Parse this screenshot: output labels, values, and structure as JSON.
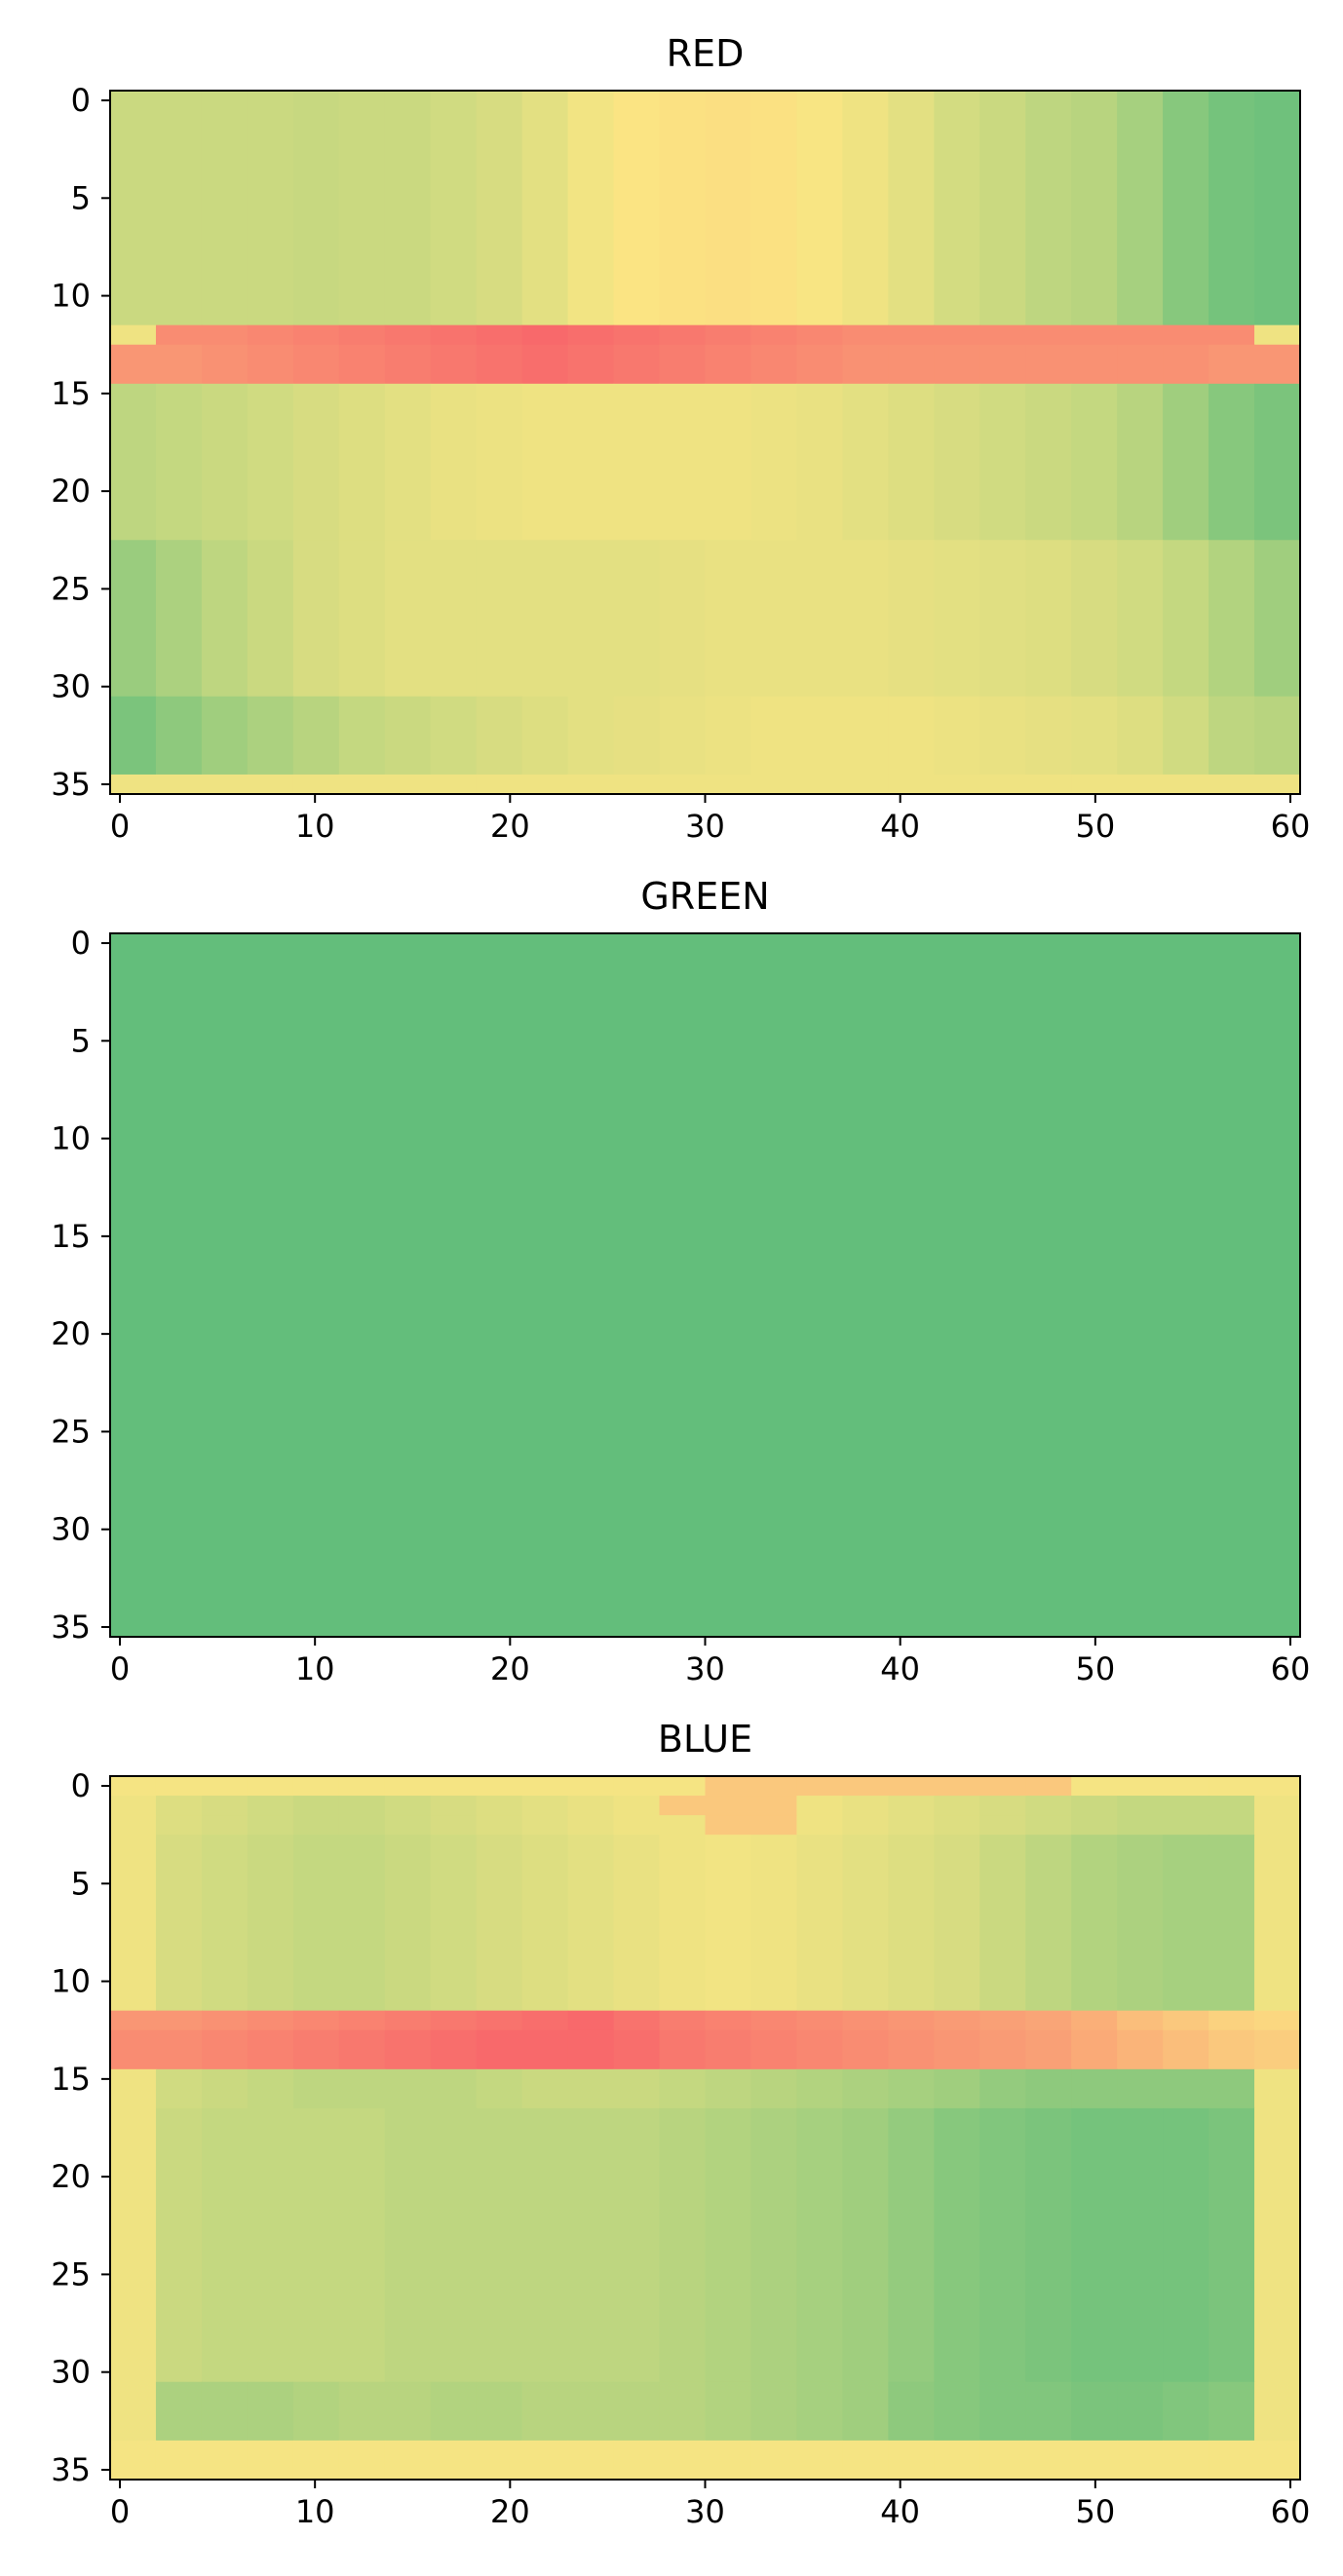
{
  "chart_data": [
    {
      "type": "heatmap",
      "title": "RED",
      "xlim": [
        -0.5,
        60.5
      ],
      "ylim": [
        35.5,
        -0.5
      ],
      "xticks": [
        0,
        10,
        20,
        30,
        40,
        50,
        60
      ],
      "yticks": [
        0,
        5,
        10,
        15,
        20,
        25,
        30,
        35
      ],
      "grid": false,
      "colormap": "RdYlGn",
      "colors": {
        "low": "#f8696b",
        "mid": "#fbe683",
        "high": "#63be7b"
      },
      "rows": [
        {
          "y": [
            0,
            11
          ],
          "values": [
            0.34,
            0.34,
            0.34,
            0.34,
            0.33,
            0.34,
            0.34,
            0.36,
            0.38,
            0.42,
            0.47,
            0.51,
            0.52,
            0.53,
            0.52,
            0.49,
            0.46,
            0.42,
            0.37,
            0.34,
            0.3,
            0.28,
            0.22,
            0.12,
            0.06,
            0.04
          ]
        },
        {
          "y": [
            12,
            12
          ],
          "values": [
            0.46,
            0.86,
            0.86,
            0.88,
            0.9,
            0.92,
            0.94,
            0.96,
            0.98,
            1.0,
            0.98,
            0.96,
            0.94,
            0.92,
            0.9,
            0.88,
            0.86,
            0.86,
            0.86,
            0.86,
            0.86,
            0.86,
            0.86,
            0.86,
            0.86,
            0.46
          ]
        },
        {
          "y": [
            13,
            14
          ],
          "values": [
            0.82,
            0.82,
            0.84,
            0.86,
            0.88,
            0.9,
            0.92,
            0.94,
            0.96,
            0.98,
            0.96,
            0.94,
            0.92,
            0.9,
            0.88,
            0.86,
            0.84,
            0.84,
            0.84,
            0.84,
            0.84,
            0.84,
            0.84,
            0.84,
            0.82,
            0.82
          ]
        },
        {
          "y": [
            15,
            22
          ],
          "values": [
            0.3,
            0.32,
            0.34,
            0.36,
            0.38,
            0.4,
            0.42,
            0.44,
            0.45,
            0.46,
            0.46,
            0.46,
            0.46,
            0.46,
            0.45,
            0.44,
            0.42,
            0.4,
            0.38,
            0.36,
            0.34,
            0.32,
            0.28,
            0.2,
            0.12,
            0.08
          ]
        },
        {
          "y": [
            23,
            30
          ],
          "values": [
            0.18,
            0.24,
            0.3,
            0.34,
            0.38,
            0.4,
            0.42,
            0.42,
            0.42,
            0.42,
            0.42,
            0.42,
            0.43,
            0.44,
            0.44,
            0.44,
            0.44,
            0.43,
            0.42,
            0.41,
            0.4,
            0.38,
            0.36,
            0.32,
            0.26,
            0.2
          ]
        },
        {
          "y": [
            31,
            34
          ],
          "values": [
            0.08,
            0.14,
            0.2,
            0.24,
            0.28,
            0.32,
            0.34,
            0.36,
            0.38,
            0.4,
            0.42,
            0.43,
            0.44,
            0.45,
            0.46,
            0.46,
            0.46,
            0.46,
            0.45,
            0.44,
            0.43,
            0.42,
            0.4,
            0.36,
            0.3,
            0.28
          ]
        },
        {
          "y": [
            35,
            35
          ],
          "values": [
            0.46,
            0.46,
            0.46,
            0.46,
            0.46,
            0.46,
            0.46,
            0.46,
            0.46,
            0.46,
            0.46,
            0.46,
            0.46,
            0.46,
            0.46,
            0.46,
            0.46,
            0.46,
            0.46,
            0.46,
            0.46,
            0.46,
            0.46,
            0.46,
            0.46,
            0.46
          ]
        }
      ]
    },
    {
      "type": "heatmap",
      "title": "GREEN",
      "xlim": [
        -0.5,
        60.5
      ],
      "ylim": [
        35.5,
        -0.5
      ],
      "xticks": [
        0,
        10,
        20,
        30,
        40,
        50,
        60
      ],
      "yticks": [
        0,
        5,
        10,
        15,
        20,
        25,
        30,
        35
      ],
      "grid": false,
      "colormap": "RdYlGn",
      "colors": {
        "low": "#f8696b",
        "mid": "#fbe683",
        "high": "#63be7b"
      },
      "rows": [
        {
          "y": [
            0,
            35
          ],
          "values": [
            0.0
          ]
        }
      ]
    },
    {
      "type": "heatmap",
      "title": "BLUE",
      "xlim": [
        -0.5,
        60.5
      ],
      "ylim": [
        35.5,
        -0.5
      ],
      "xticks": [
        0,
        10,
        20,
        30,
        40,
        50,
        60
      ],
      "yticks": [
        0,
        5,
        10,
        15,
        20,
        25,
        30,
        35
      ],
      "grid": false,
      "colormap": "RdYlGn",
      "colors": {
        "low": "#f8696b",
        "mid": "#fbe683",
        "high": "#63be7b"
      },
      "rows": [
        {
          "y": [
            0,
            0
          ],
          "values": [
            0.48,
            0.48,
            0.48,
            0.48,
            0.48,
            0.48,
            0.48,
            0.48,
            0.48,
            0.48,
            0.48,
            0.48,
            0.48,
            0.62,
            0.62,
            0.62,
            0.62,
            0.62,
            0.62,
            0.62,
            0.62,
            0.48,
            0.48,
            0.48,
            0.48,
            0.48
          ]
        },
        {
          "y": [
            1,
            1
          ],
          "values": [
            0.46,
            0.4,
            0.38,
            0.36,
            0.34,
            0.34,
            0.36,
            0.38,
            0.4,
            0.42,
            0.44,
            0.46,
            0.62,
            0.62,
            0.62,
            0.46,
            0.44,
            0.42,
            0.4,
            0.38,
            0.36,
            0.34,
            0.32,
            0.32,
            0.32,
            0.46
          ]
        },
        {
          "y": [
            2,
            2
          ],
          "values": [
            0.46,
            0.4,
            0.38,
            0.36,
            0.34,
            0.34,
            0.36,
            0.38,
            0.4,
            0.42,
            0.44,
            0.46,
            0.46,
            0.62,
            0.62,
            0.46,
            0.44,
            0.42,
            0.4,
            0.38,
            0.36,
            0.34,
            0.32,
            0.32,
            0.32,
            0.46
          ]
        },
        {
          "y": [
            3,
            11
          ],
          "values": [
            0.46,
            0.38,
            0.36,
            0.34,
            0.32,
            0.32,
            0.34,
            0.36,
            0.38,
            0.4,
            0.42,
            0.44,
            0.46,
            0.47,
            0.46,
            0.44,
            0.42,
            0.4,
            0.38,
            0.34,
            0.3,
            0.26,
            0.24,
            0.22,
            0.22,
            0.46
          ]
        },
        {
          "y": [
            12,
            12
          ],
          "values": [
            0.82,
            0.82,
            0.84,
            0.86,
            0.88,
            0.9,
            0.92,
            0.94,
            0.96,
            0.98,
            1.0,
            0.96,
            0.92,
            0.9,
            0.88,
            0.86,
            0.84,
            0.82,
            0.8,
            0.78,
            0.76,
            0.72,
            0.66,
            0.62,
            0.58,
            0.56
          ]
        },
        {
          "y": [
            13,
            14
          ],
          "values": [
            0.86,
            0.86,
            0.88,
            0.9,
            0.92,
            0.94,
            0.96,
            0.98,
            1.0,
            1.0,
            1.0,
            0.98,
            0.94,
            0.92,
            0.9,
            0.88,
            0.86,
            0.84,
            0.82,
            0.8,
            0.78,
            0.74,
            0.7,
            0.66,
            0.62,
            0.6
          ]
        },
        {
          "y": [
            15,
            16
          ],
          "values": [
            0.46,
            0.36,
            0.34,
            0.32,
            0.3,
            0.3,
            0.3,
            0.3,
            0.32,
            0.34,
            0.34,
            0.34,
            0.32,
            0.3,
            0.28,
            0.26,
            0.24,
            0.22,
            0.2,
            0.16,
            0.14,
            0.14,
            0.14,
            0.14,
            0.14,
            0.46
          ]
        },
        {
          "y": [
            17,
            30
          ],
          "values": [
            0.46,
            0.34,
            0.32,
            0.32,
            0.32,
            0.32,
            0.3,
            0.3,
            0.3,
            0.3,
            0.3,
            0.3,
            0.28,
            0.26,
            0.24,
            0.22,
            0.2,
            0.16,
            0.12,
            0.1,
            0.08,
            0.06,
            0.06,
            0.06,
            0.08,
            0.46
          ]
        },
        {
          "y": [
            31,
            33
          ],
          "values": [
            0.46,
            0.24,
            0.24,
            0.24,
            0.26,
            0.28,
            0.28,
            0.26,
            0.26,
            0.28,
            0.28,
            0.28,
            0.28,
            0.26,
            0.24,
            0.22,
            0.2,
            0.14,
            0.12,
            0.1,
            0.1,
            0.08,
            0.08,
            0.1,
            0.12,
            0.46
          ]
        },
        {
          "y": [
            34,
            35
          ],
          "values": [
            0.48,
            0.48,
            0.48,
            0.48,
            0.48,
            0.48,
            0.48,
            0.48,
            0.48,
            0.48,
            0.48,
            0.48,
            0.48,
            0.48,
            0.48,
            0.48,
            0.48,
            0.48,
            0.48,
            0.48,
            0.48,
            0.48,
            0.48,
            0.48,
            0.48,
            0.48
          ]
        }
      ]
    }
  ]
}
